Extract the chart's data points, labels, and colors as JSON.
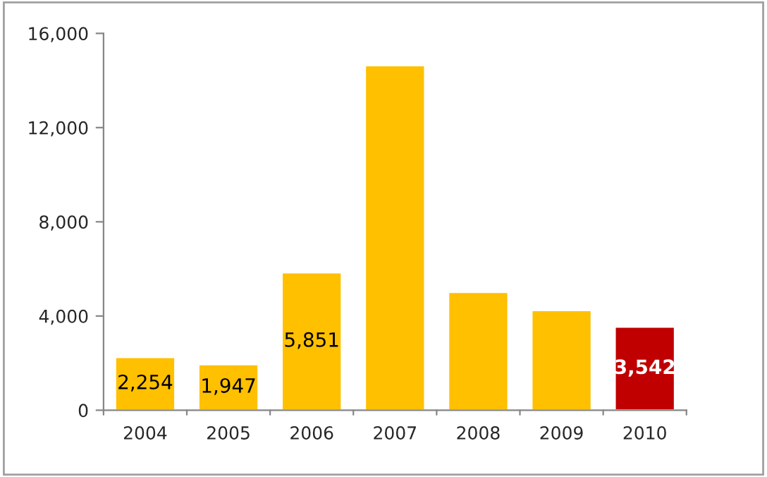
{
  "chart_data": {
    "type": "bar",
    "categories": [
      "2004",
      "2005",
      "2006",
      "2007",
      "2008",
      "2009",
      "2010"
    ],
    "values": [
      2254,
      1947,
      5851,
      14640,
      5020,
      4250,
      3542
    ],
    "value_labels": [
      "2,254",
      "1,947",
      "5,851",
      null,
      null,
      null,
      "3,542"
    ],
    "colors": [
      "#ffc000",
      "#ffc000",
      "#ffc000",
      "#ffc000",
      "#ffc000",
      "#ffc000",
      "#c00000"
    ],
    "ylim": [
      0,
      16000
    ],
    "yticks": [
      {
        "value": 0,
        "label": "0"
      },
      {
        "value": 4000,
        "label": "4,000"
      },
      {
        "value": 8000,
        "label": "8,000"
      },
      {
        "value": 12000,
        "label": "12,000"
      },
      {
        "value": 16000,
        "label": "16,000"
      }
    ],
    "grid": false,
    "legend": false
  }
}
